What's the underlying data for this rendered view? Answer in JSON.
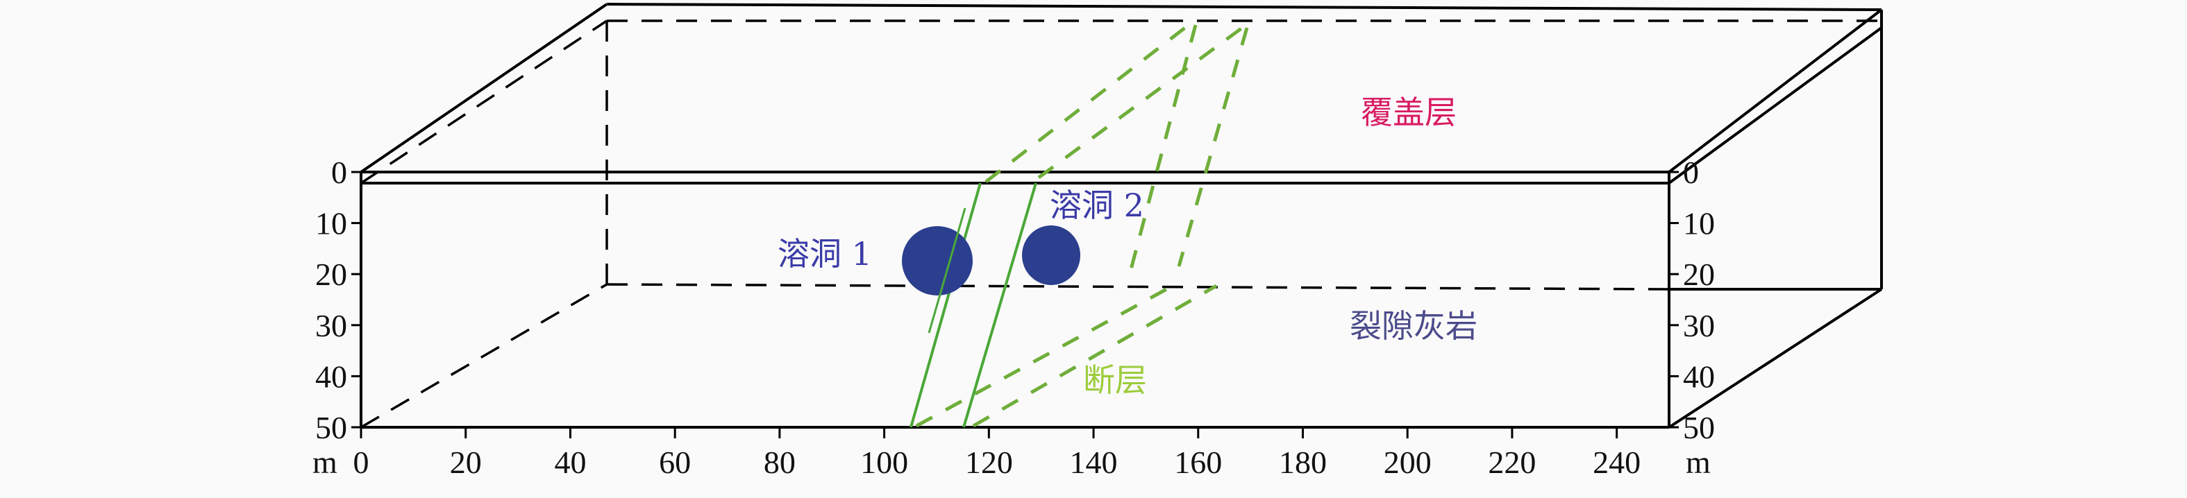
{
  "labels": {
    "cover_layer": "覆盖层",
    "fractured_limestone": "裂隙灰岩",
    "cave1": "溶洞 1",
    "cave2": "溶洞 2",
    "fault": "断层",
    "unit_left": "m",
    "unit_right": "m"
  },
  "x_axis": {
    "ticks": [
      "0",
      "20",
      "40",
      "60",
      "80",
      "100",
      "120",
      "140",
      "160",
      "180",
      "200",
      "220",
      "240"
    ],
    "range": [
      0,
      250
    ],
    "unit": "m"
  },
  "depth_axis": {
    "ticks": [
      "0",
      "10",
      "20",
      "30",
      "40",
      "50"
    ],
    "range": [
      0,
      50
    ],
    "unit": "m"
  },
  "colors": {
    "cover_layer": "#d81b60",
    "fractured_limestone": "#4b4b8c",
    "cave_label": "#3b3ba8",
    "cave_fill": "#2b3f8e",
    "fault": "#8cc63f"
  }
}
